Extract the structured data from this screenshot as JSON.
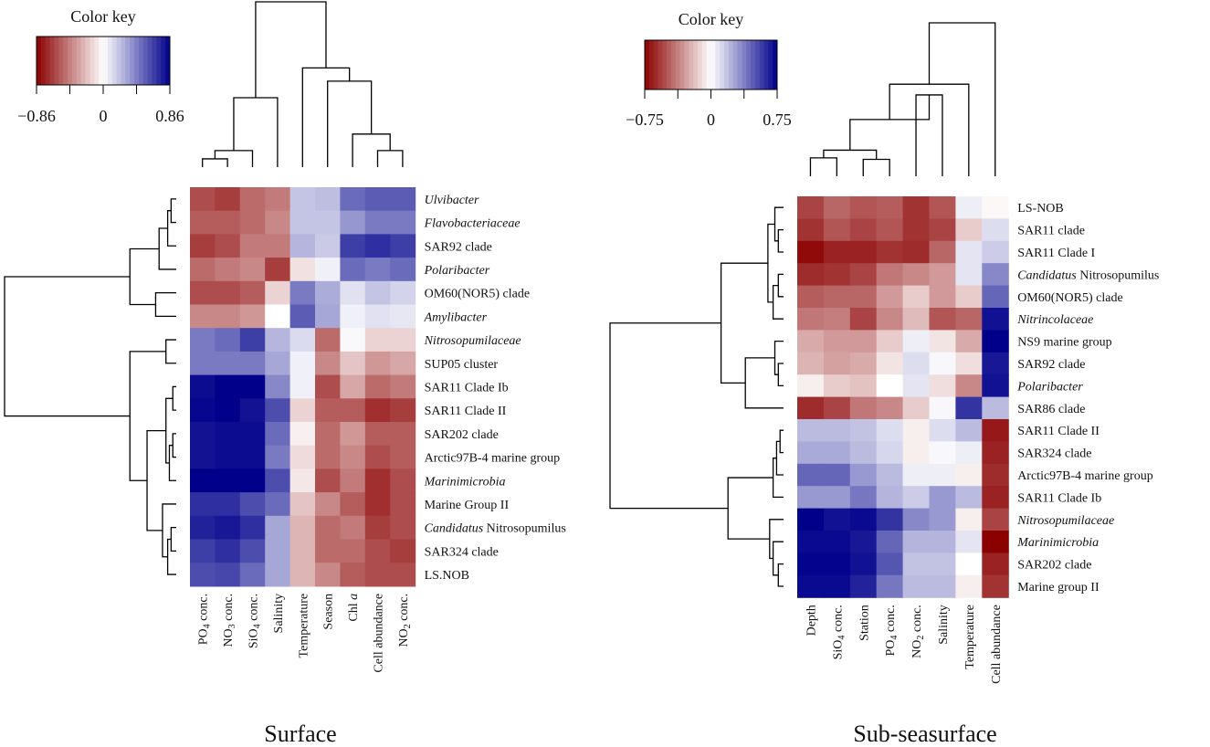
{
  "chart_data": [
    {
      "type": "heatmap",
      "title": "Surface",
      "color_key": {
        "title": "Color key",
        "min": -0.86,
        "max": 0.86,
        "tick_labels": [
          "−0.86",
          "0",
          "0.86"
        ],
        "low_color": "#8b0000",
        "mid_color": "#ffffff",
        "high_color": "#00008b"
      },
      "rows": [
        {
          "label": "Ulvibacter",
          "italic": true
        },
        {
          "label": "Flavobacteriaceae",
          "italic": true
        },
        {
          "label": "SAR92 clade",
          "italic": false
        },
        {
          "label": "Polaribacter",
          "italic": true
        },
        {
          "label": "OM60(NOR5) clade",
          "italic": false
        },
        {
          "label": "Amylibacter",
          "italic": true
        },
        {
          "label": "Nitrosopumilaceae",
          "italic": true
        },
        {
          "label": "SUP05 cluster",
          "italic": false
        },
        {
          "label": "SAR11 Clade Ib",
          "italic": false
        },
        {
          "label": "SAR11 Clade II",
          "italic": false
        },
        {
          "label": "SAR202 clade",
          "italic": false
        },
        {
          "label": "Arctic97B-4 marine group",
          "italic": false
        },
        {
          "label": "Marinimicrobia",
          "italic": true
        },
        {
          "label": "Marine Group II",
          "italic": false
        },
        {
          "label": "Candidatus Nitrosopumilus",
          "italic": false,
          "italic_prefix": "Candidatus",
          "rest": " Nitrosopumilus"
        },
        {
          "label": "SAR324 clade",
          "italic": false
        },
        {
          "label": "LS.NOB",
          "italic": false
        }
      ],
      "columns": [
        {
          "label": "PO4 conc.",
          "base": "PO",
          "sub": "4",
          "after": " conc."
        },
        {
          "label": "NO3 conc.",
          "base": "NO",
          "sub": "3",
          "after": " conc."
        },
        {
          "label": "SiO4 conc.",
          "base": "SiO",
          "sub": "4",
          "after": " conc."
        },
        {
          "label": "Salinity"
        },
        {
          "label": "Temperature"
        },
        {
          "label": "Season"
        },
        {
          "label": "Chl a",
          "base": "Chl ",
          "italic_tail": "a"
        },
        {
          "label": "Cell abundance"
        },
        {
          "label": "NO2 conc.",
          "base": "NO",
          "sub": "2",
          "after": " conc."
        }
      ],
      "values": [
        [
          -0.6,
          -0.65,
          -0.5,
          -0.45,
          0.2,
          0.22,
          0.5,
          0.55,
          0.55
        ],
        [
          -0.55,
          -0.55,
          -0.5,
          -0.4,
          0.2,
          0.2,
          0.35,
          0.45,
          0.45
        ],
        [
          -0.65,
          -0.6,
          -0.45,
          -0.45,
          0.25,
          0.18,
          0.65,
          0.7,
          0.65
        ],
        [
          -0.5,
          -0.45,
          -0.4,
          -0.65,
          -0.1,
          0.05,
          0.5,
          0.45,
          0.5
        ],
        [
          -0.6,
          -0.6,
          -0.55,
          -0.15,
          0.45,
          0.28,
          0.1,
          0.2,
          0.15
        ],
        [
          -0.4,
          -0.4,
          -0.35,
          0.0,
          0.55,
          0.3,
          0.05,
          0.1,
          0.08
        ],
        [
          0.45,
          0.5,
          0.65,
          0.25,
          0.12,
          -0.5,
          0.02,
          -0.15,
          -0.15
        ],
        [
          0.45,
          0.45,
          0.45,
          0.3,
          0.05,
          -0.4,
          -0.2,
          -0.35,
          -0.3
        ],
        [
          0.82,
          0.86,
          0.86,
          0.4,
          0.05,
          -0.6,
          -0.3,
          -0.5,
          -0.45
        ],
        [
          0.84,
          0.86,
          0.8,
          0.6,
          -0.15,
          -0.55,
          -0.55,
          -0.7,
          -0.65
        ],
        [
          0.8,
          0.82,
          0.82,
          0.5,
          -0.05,
          -0.5,
          -0.35,
          -0.55,
          -0.55
        ],
        [
          0.8,
          0.82,
          0.82,
          0.45,
          -0.12,
          -0.5,
          -0.4,
          -0.6,
          -0.55
        ],
        [
          0.86,
          0.86,
          0.86,
          0.6,
          -0.08,
          -0.6,
          -0.45,
          -0.7,
          -0.6
        ],
        [
          0.7,
          0.7,
          0.6,
          0.5,
          -0.2,
          -0.4,
          -0.55,
          -0.7,
          -0.6
        ],
        [
          0.75,
          0.78,
          0.7,
          0.3,
          -0.25,
          -0.5,
          -0.45,
          -0.65,
          -0.6
        ],
        [
          0.65,
          0.7,
          0.6,
          0.3,
          -0.25,
          -0.5,
          -0.5,
          -0.6,
          -0.65
        ],
        [
          0.6,
          0.62,
          0.5,
          0.3,
          -0.25,
          -0.4,
          -0.55,
          -0.6,
          -0.6
        ]
      ]
    },
    {
      "type": "heatmap",
      "title": "Sub-seasurface",
      "color_key": {
        "title": "Color key",
        "min": -0.75,
        "max": 0.75,
        "tick_labels": [
          "−0.75",
          "0",
          "0.75"
        ],
        "low_color": "#8b0000",
        "mid_color": "#ffffff",
        "high_color": "#00008b"
      },
      "rows": [
        {
          "label": "LS-NOB",
          "italic": false
        },
        {
          "label": "SAR11 clade",
          "italic": false
        },
        {
          "label": "SAR11 Clade I",
          "italic": false
        },
        {
          "label": "Candidatus Nitrosopumilus",
          "italic": false,
          "italic_prefix": "Candidatus",
          "rest": " Nitrosopumilus"
        },
        {
          "label": "OM60(NOR5) clade",
          "italic": false
        },
        {
          "label": "Nitrincolaceae",
          "italic": true
        },
        {
          "label": "NS9 marine group",
          "italic": false
        },
        {
          "label": "SAR92 clade",
          "italic": false
        },
        {
          "label": "Polaribacter",
          "italic": true
        },
        {
          "label": "SAR86 clade",
          "italic": false
        },
        {
          "label": "SAR11 Clade II",
          "italic": false
        },
        {
          "label": "SAR324 clade",
          "italic": false
        },
        {
          "label": "Arctic97B-4 marine group",
          "italic": false
        },
        {
          "label": "SAR11 Clade Ib",
          "italic": false
        },
        {
          "label": "Nitrosopumilaceae",
          "italic": true
        },
        {
          "label": "Marinimicrobia",
          "italic": true
        },
        {
          "label": "SAR202 clade",
          "italic": false
        },
        {
          "label": "Marine group II",
          "italic": false
        }
      ],
      "columns": [
        {
          "label": "Depth"
        },
        {
          "label": "SiO4 conc.",
          "base": "SiO",
          "sub": "4",
          "after": " conc."
        },
        {
          "label": "Station"
        },
        {
          "label": "PO4 conc.",
          "base": "PO",
          "sub": "4",
          "after": " conc."
        },
        {
          "label": "NO2 conc.",
          "base": "NO",
          "sub": "2",
          "after": " conc."
        },
        {
          "label": "Salinity"
        },
        {
          "label": "Temperature"
        },
        {
          "label": "Cell abundance"
        }
      ],
      "values": [
        [
          -0.55,
          -0.45,
          -0.5,
          -0.48,
          -0.6,
          -0.5,
          0.05,
          -0.02
        ],
        [
          -0.6,
          -0.5,
          -0.55,
          -0.5,
          -0.6,
          -0.55,
          -0.15,
          0.1
        ],
        [
          -0.72,
          -0.65,
          -0.65,
          -0.6,
          -0.62,
          -0.45,
          0.08,
          0.15
        ],
        [
          -0.62,
          -0.6,
          -0.55,
          -0.4,
          -0.35,
          -0.3,
          0.08,
          0.35
        ],
        [
          -0.48,
          -0.45,
          -0.45,
          -0.3,
          -0.15,
          -0.3,
          -0.15,
          0.45
        ],
        [
          -0.4,
          -0.38,
          -0.55,
          -0.35,
          -0.2,
          -0.5,
          -0.45,
          0.7
        ],
        [
          -0.25,
          -0.3,
          -0.3,
          -0.15,
          0.05,
          -0.08,
          -0.25,
          0.75
        ],
        [
          -0.22,
          -0.28,
          -0.25,
          -0.08,
          0.1,
          0.02,
          -0.1,
          0.68
        ],
        [
          -0.05,
          -0.15,
          -0.18,
          0.0,
          0.08,
          -0.1,
          -0.35,
          0.7
        ],
        [
          -0.62,
          -0.55,
          -0.4,
          -0.35,
          -0.15,
          0.02,
          0.6,
          0.2
        ],
        [
          0.2,
          0.2,
          0.18,
          0.1,
          -0.05,
          0.1,
          0.2,
          -0.68
        ],
        [
          0.25,
          0.25,
          0.2,
          0.12,
          -0.05,
          0.02,
          0.05,
          -0.65
        ],
        [
          0.45,
          0.45,
          0.3,
          0.2,
          0.05,
          0.05,
          -0.05,
          -0.62
        ],
        [
          0.3,
          0.3,
          0.4,
          0.22,
          0.15,
          0.3,
          0.2,
          -0.65
        ],
        [
          0.75,
          0.7,
          0.72,
          0.6,
          0.35,
          0.3,
          -0.05,
          -0.55
        ],
        [
          0.72,
          0.72,
          0.68,
          0.45,
          0.22,
          0.22,
          0.08,
          -0.75
        ],
        [
          0.74,
          0.74,
          0.7,
          0.5,
          0.18,
          0.18,
          0.0,
          -0.65
        ],
        [
          0.72,
          0.72,
          0.65,
          0.4,
          0.2,
          0.2,
          -0.05,
          -0.6
        ]
      ]
    }
  ]
}
